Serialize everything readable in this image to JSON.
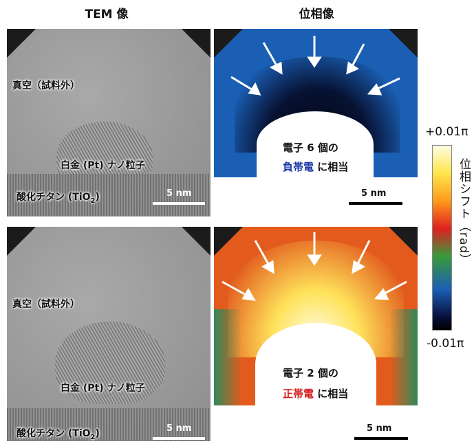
{
  "headers": {
    "left": "TEM 像",
    "right": "位相像"
  },
  "top_row": {
    "tem": {
      "vacuum_label": "真空（試料外）",
      "particle_label": "白金 (Pt) ナノ粒子",
      "substrate_label": "酸化チタン (TiO",
      "substrate_sub": "2",
      "substrate_close": ")",
      "scale": "5 nm"
    },
    "phase": {
      "line1": "電子 6 個の",
      "charge": "負帯電",
      "line2_rest": " に相当",
      "scale": "5 nm"
    }
  },
  "bottom_row": {
    "tem": {
      "vacuum_label": "真空（試料外）",
      "particle_label": "白金 (Pt) ナノ粒子",
      "substrate_label": "酸化チタン (TiO",
      "substrate_sub": "2",
      "substrate_close": ")",
      "scale": "5 nm"
    },
    "phase": {
      "line1": "電子 2 個の",
      "charge": "正帯電",
      "line2_rest": " に相当",
      "scale": "5 nm"
    }
  },
  "colorbar": {
    "top": "+0.01π",
    "bottom": "-0.01π",
    "label": "位相シフト（rad）"
  },
  "colors": {
    "negative_charge": "#1c3aa6",
    "positive_charge": "#d61c1c"
  }
}
